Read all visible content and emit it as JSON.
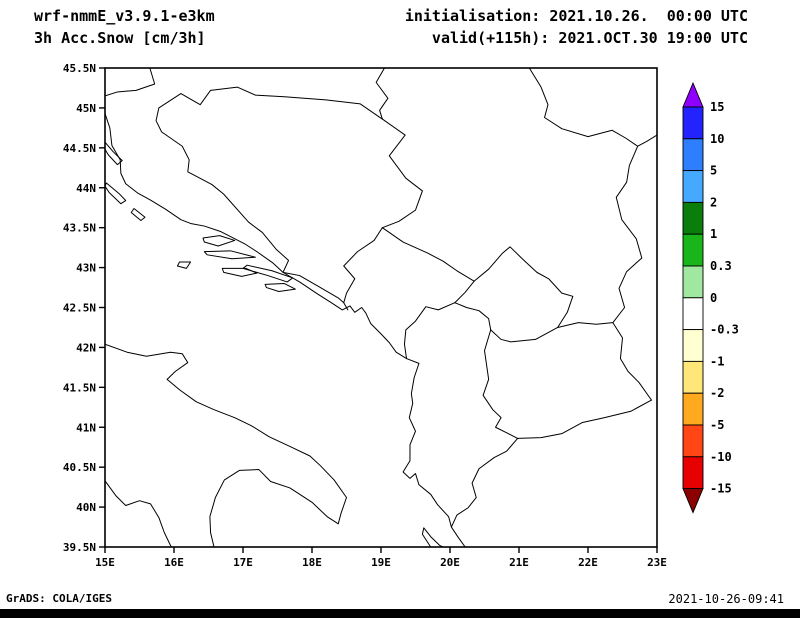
{
  "header": {
    "model_title": "wrf-nmmE_v3.9.1-e3km",
    "field_title": "3h Acc.Snow [cm/3h]",
    "init_line": "initialisation: 2021.10.26.  00:00 UTC",
    "valid_line": "valid(+115h): 2021.OCT.30 19:00 UTC"
  },
  "footer": {
    "credit": "GrADS: COLA/IGES",
    "generated": "2021-10-26-09:41"
  },
  "chart_data": {
    "type": "heatmap",
    "title": "3h Acc.Snow [cm/3h]",
    "model": "wrf-nmmE_v3.9.1-e3km",
    "init": "2021.10.26. 00:00 UTC",
    "valid": "2021.OCT.30 19:00 UTC (+115h)",
    "xlabel": "",
    "ylabel": "",
    "xlim": [
      15,
      23
    ],
    "ylim": [
      39.5,
      45.5
    ],
    "x_ticks": [
      "15E",
      "16E",
      "17E",
      "18E",
      "19E",
      "20E",
      "21E",
      "22E",
      "23E"
    ],
    "y_ticks": [
      "45.5N",
      "45N",
      "44.5N",
      "44N",
      "43.5N",
      "43N",
      "42.5N",
      "42N",
      "41.5N",
      "41N",
      "40.5N",
      "40N",
      "39.5N"
    ],
    "region": "Adriatic / Western Balkans coastlines and country borders drawn in black outline",
    "values": [],
    "shading_note": "no snow accumulation shaded anywhere in the domain",
    "grid": "off",
    "legend_position": "right colorbar with out-of-range arrows",
    "colorbar": {
      "labels": [
        "15",
        "10",
        "5",
        "2",
        "1",
        "0.3",
        "0",
        "-0.3",
        "-1",
        "-2",
        "-5",
        "-10",
        "-15"
      ],
      "colors": [
        "#8f00ff",
        "#2323ff",
        "#2e7fff",
        "#45a9ff",
        "#0b7d0b",
        "#1ab51a",
        "#a0e8a0",
        "#ffffff",
        "#ffffd2",
        "#ffe678",
        "#ffaa1e",
        "#ff4614",
        "#e60000",
        "#8b0000"
      ]
    }
  }
}
